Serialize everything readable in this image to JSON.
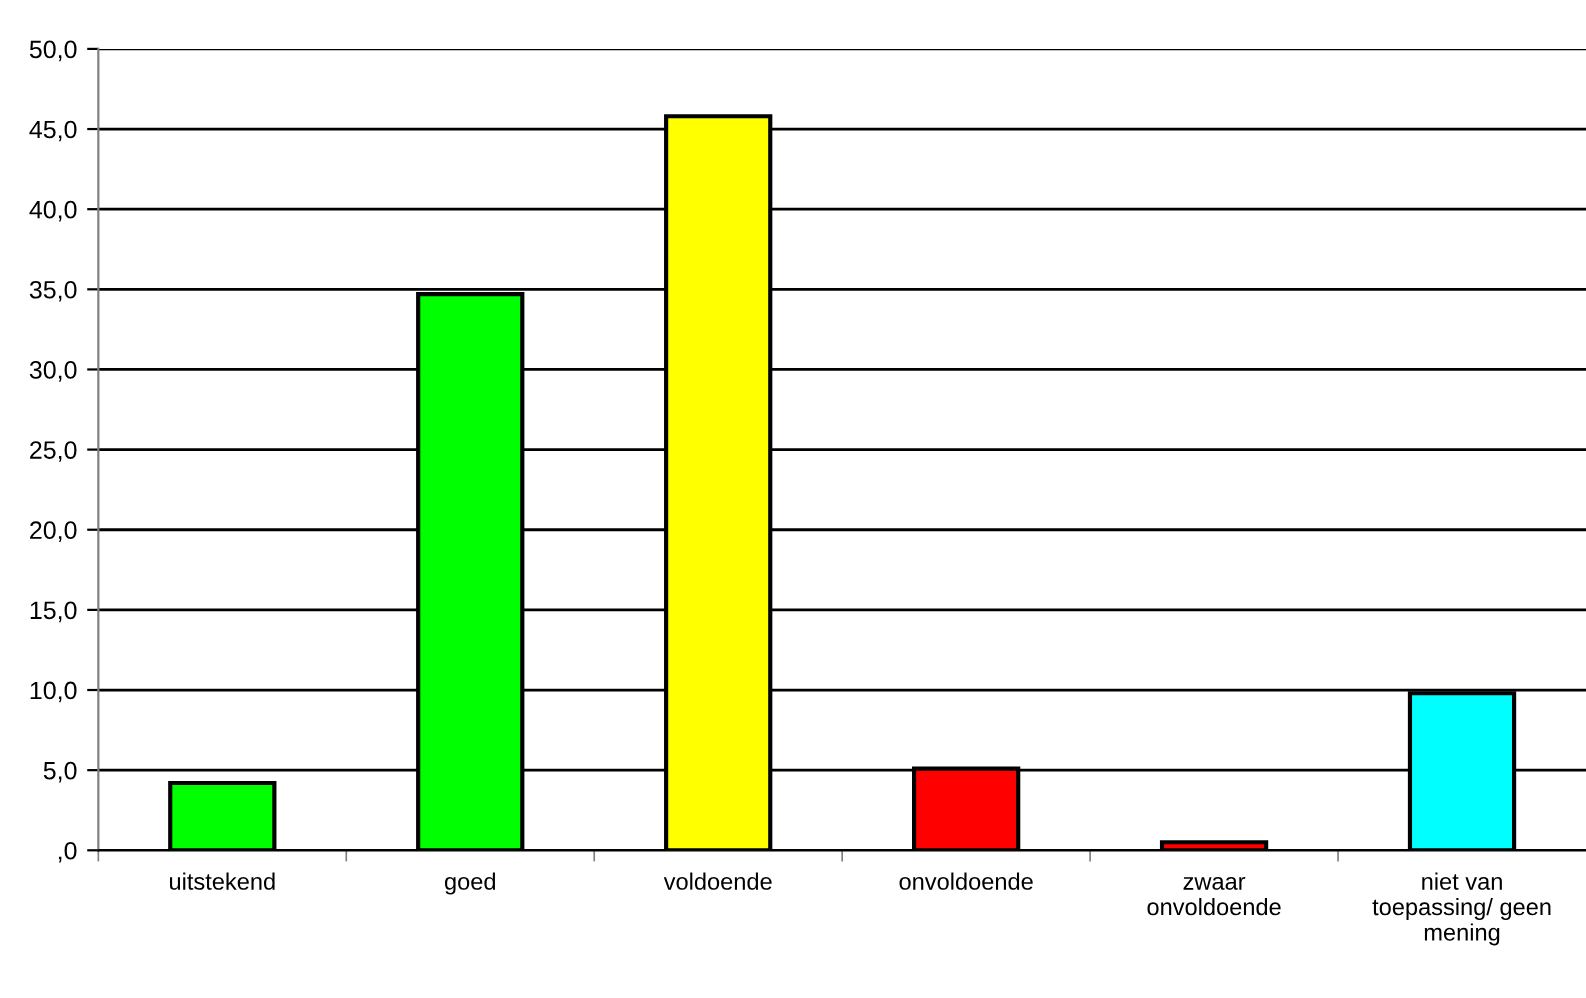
{
  "chart_data": {
    "type": "bar",
    "categories": [
      "uitstekend",
      "goed",
      "voldoende",
      "onvoldoende",
      "zwaar\nonvoldoende",
      "niet van\ntoepassing/ geen\nmening"
    ],
    "values": [
      4.2,
      34.7,
      45.8,
      5.1,
      0.5,
      9.8
    ],
    "colors": [
      "#00ff00",
      "#00ff00",
      "#ffff00",
      "#ff0000",
      "#ff0000",
      "#00ffff"
    ],
    "ylim": [
      0,
      50
    ],
    "yticks": [
      {
        "value": 0,
        "label": ",0"
      },
      {
        "value": 5,
        "label": "5,0"
      },
      {
        "value": 10,
        "label": "10,0"
      },
      {
        "value": 15,
        "label": "15,0"
      },
      {
        "value": 20,
        "label": "20,0"
      },
      {
        "value": 25,
        "label": "25,0"
      },
      {
        "value": 30,
        "label": "30,0"
      },
      {
        "value": 35,
        "label": "35,0"
      },
      {
        "value": 40,
        "label": "40,0"
      },
      {
        "value": 45,
        "label": "45,0"
      },
      {
        "value": 50,
        "label": "50,0"
      }
    ],
    "grid": "y"
  }
}
